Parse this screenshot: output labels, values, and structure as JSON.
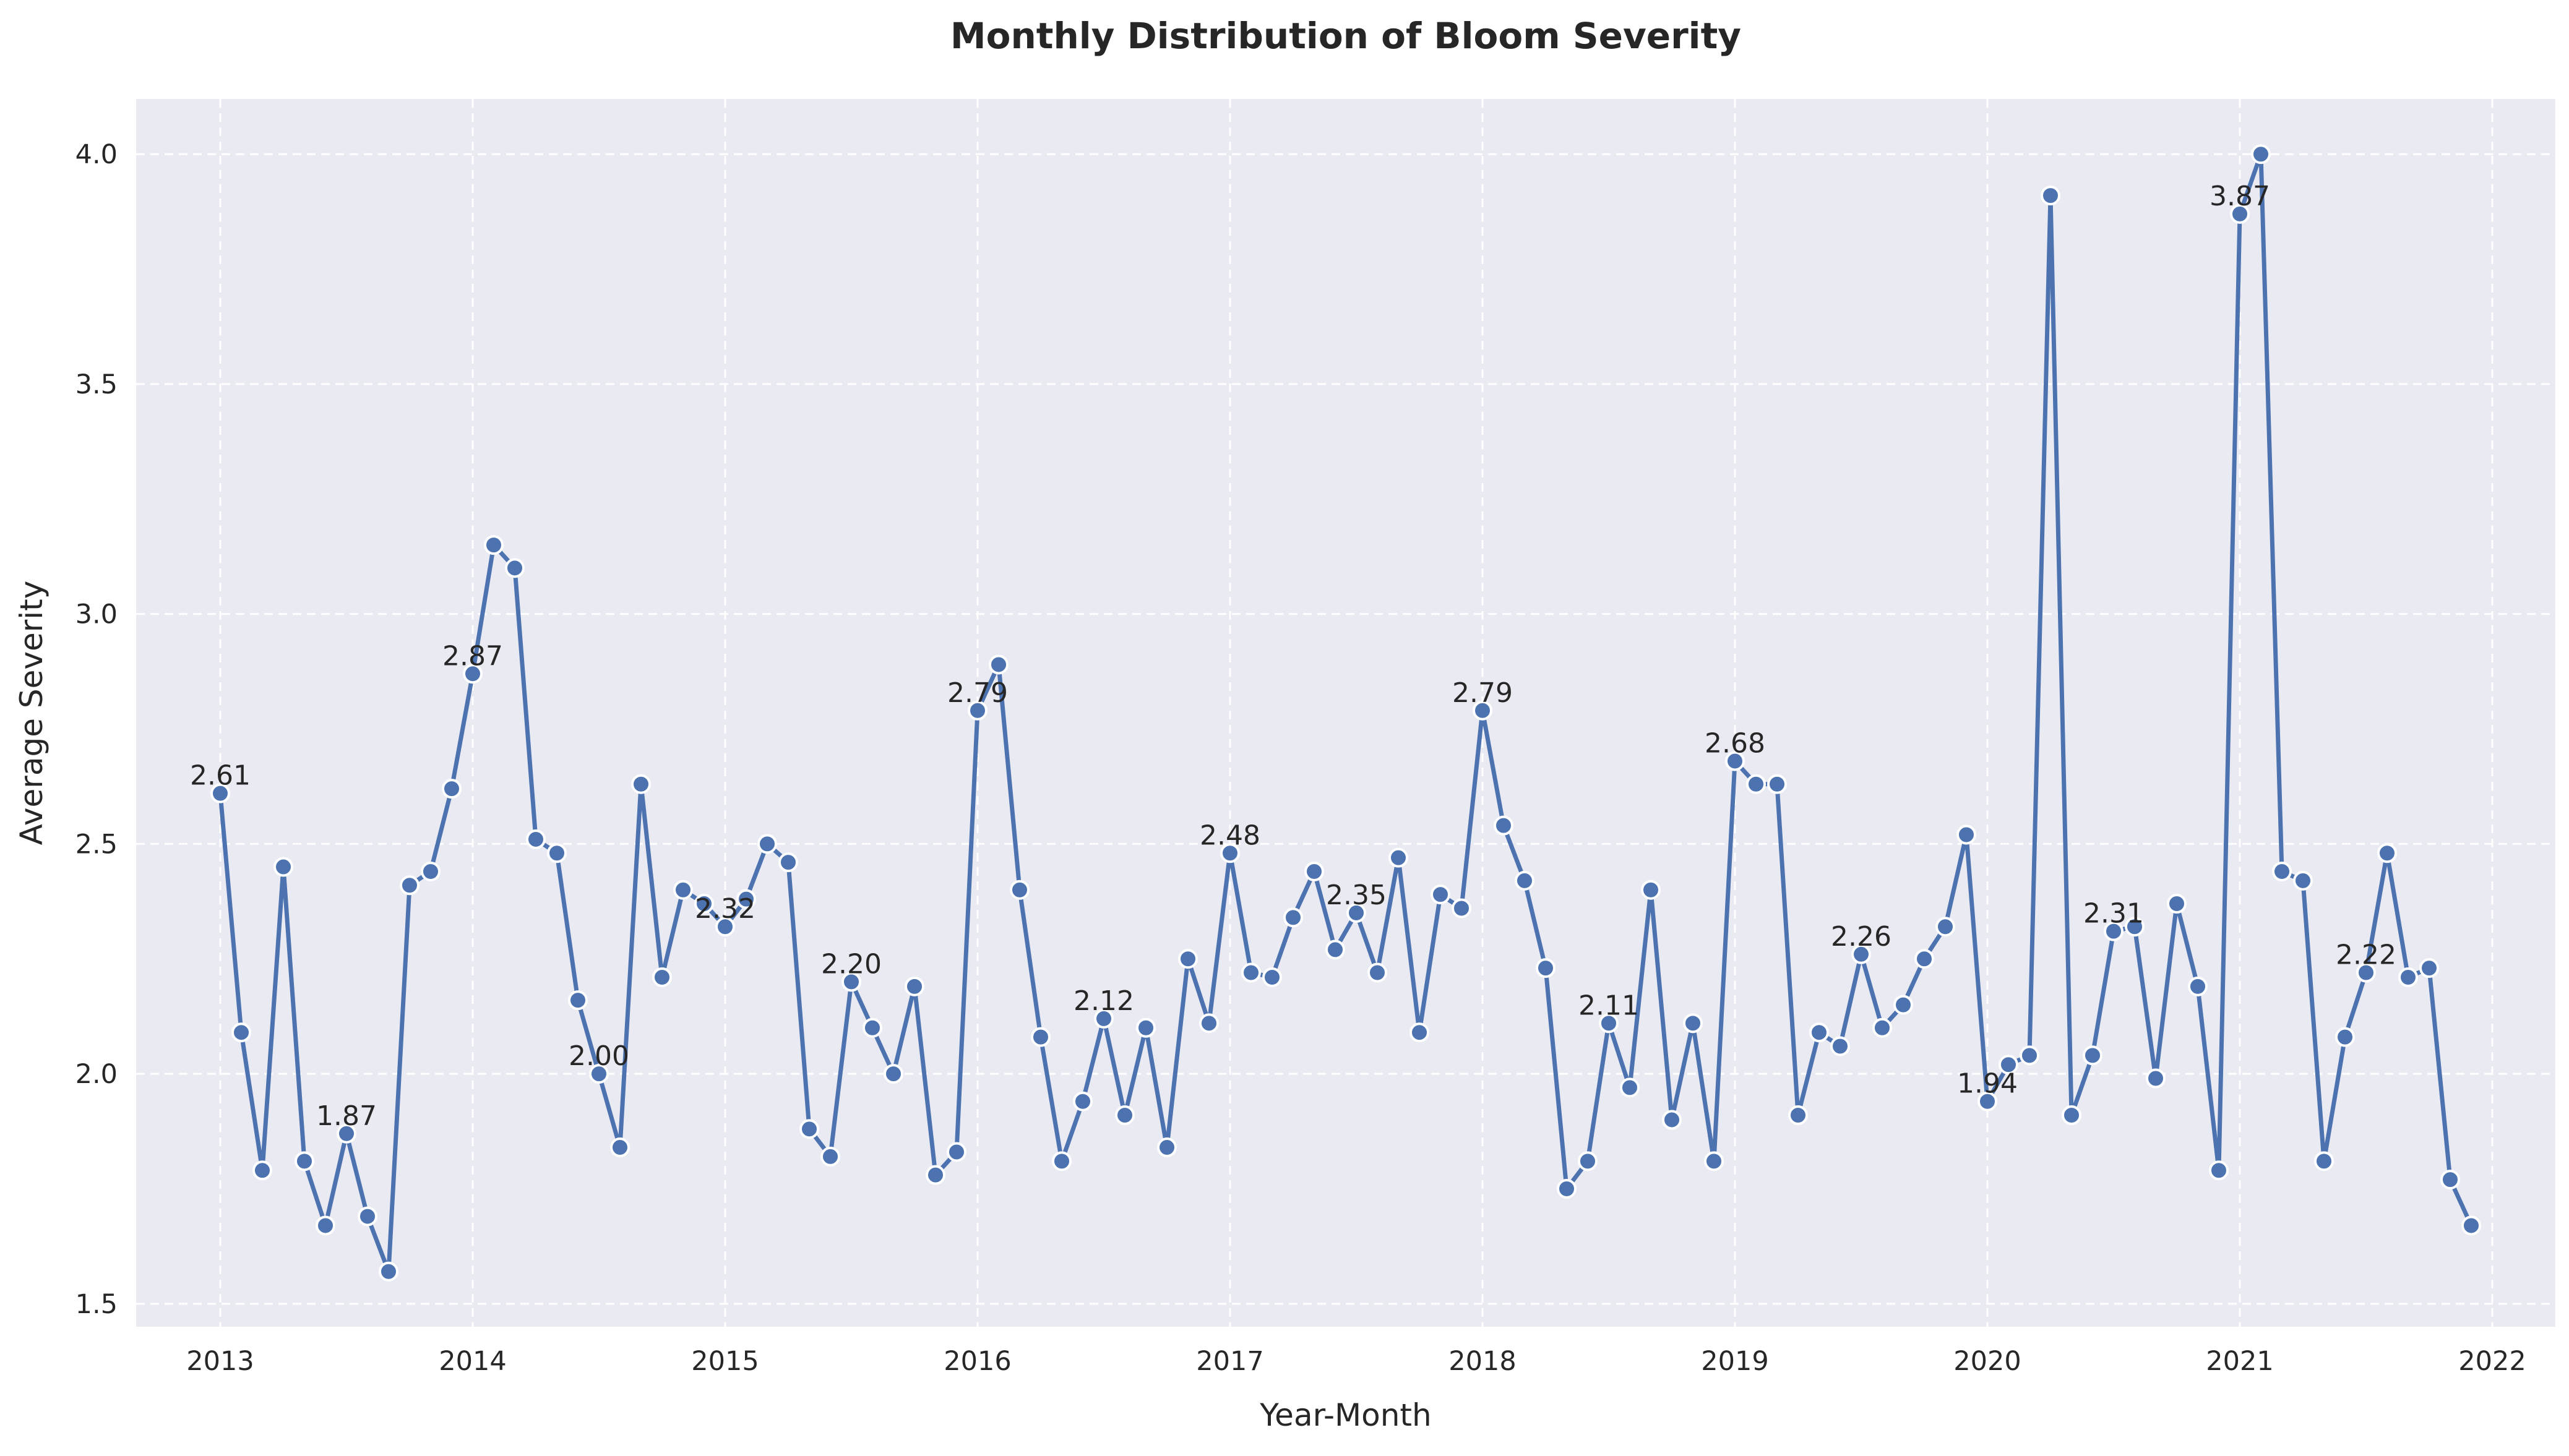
{
  "chart_data": {
    "type": "line",
    "title": "Monthly Distribution of Bloom Severity",
    "xlabel": "Year-Month",
    "ylabel": "Average Severity",
    "x_start": "2013-01",
    "x_ticks": [
      "2013",
      "2014",
      "2015",
      "2016",
      "2017",
      "2018",
      "2019",
      "2020",
      "2021",
      "2022"
    ],
    "xlim": [
      "2012-09",
      "2022-04"
    ],
    "y_ticks": [
      "1.5",
      "2.0",
      "2.5",
      "3.0",
      "3.5",
      "4.0"
    ],
    "ylim": [
      1.45,
      4.12
    ],
    "grid": true,
    "legend": "none",
    "line_color": "#4c72b0",
    "marker_edge_color": "#ffffff",
    "background_color": "#eaeaf2",
    "grid_color": "#ffffff",
    "series": [
      {
        "values": [
          2.61,
          2.09,
          1.79,
          2.45,
          1.81,
          1.67,
          1.87,
          1.69,
          1.57,
          2.41,
          2.44,
          2.62,
          2.87,
          3.15,
          3.1,
          2.51,
          2.48,
          2.16,
          2.0,
          1.84,
          2.63,
          2.21,
          2.4,
          2.37,
          2.32,
          2.38,
          2.5,
          2.46,
          1.88,
          1.82,
          2.2,
          2.1,
          2.0,
          2.19,
          1.78,
          1.83,
          2.79,
          2.89,
          2.4,
          2.08,
          1.81,
          1.94,
          2.12,
          1.91,
          2.1,
          1.84,
          2.25,
          2.11,
          2.48,
          2.22,
          2.21,
          2.34,
          2.44,
          2.27,
          2.35,
          2.22,
          2.47,
          2.09,
          2.39,
          2.36,
          2.79,
          2.54,
          2.42,
          2.23,
          1.75,
          1.81,
          2.11,
          1.97,
          2.4,
          1.9,
          2.11,
          1.81,
          2.68,
          2.63,
          2.63,
          1.91,
          2.09,
          2.06,
          2.26,
          2.1,
          2.15,
          2.25,
          2.32,
          2.52,
          1.94,
          2.02,
          2.04,
          3.91,
          1.91,
          2.04,
          2.31,
          2.32,
          1.99,
          2.37,
          2.19,
          1.79,
          3.87,
          4.0,
          2.44,
          2.42,
          1.81,
          2.08,
          2.22,
          2.48,
          2.21,
          2.23,
          1.77,
          1.67
        ]
      }
    ],
    "annotations": [
      {
        "x": "2013-01",
        "text": "2.61"
      },
      {
        "x": "2013-07",
        "text": "1.87"
      },
      {
        "x": "2014-01",
        "text": "2.87"
      },
      {
        "x": "2014-07",
        "text": "2.00"
      },
      {
        "x": "2015-01",
        "text": "2.32"
      },
      {
        "x": "2015-07",
        "text": "2.20"
      },
      {
        "x": "2016-01",
        "text": "2.79"
      },
      {
        "x": "2016-07",
        "text": "2.12"
      },
      {
        "x": "2017-01",
        "text": "2.48"
      },
      {
        "x": "2017-07",
        "text": "2.35"
      },
      {
        "x": "2018-01",
        "text": "2.79"
      },
      {
        "x": "2018-07",
        "text": "2.11"
      },
      {
        "x": "2019-01",
        "text": "2.68"
      },
      {
        "x": "2019-07",
        "text": "2.26"
      },
      {
        "x": "2020-01",
        "text": "1.94"
      },
      {
        "x": "2020-07",
        "text": "2.31"
      },
      {
        "x": "2021-01",
        "text": "3.87"
      },
      {
        "x": "2021-07",
        "text": "2.22"
      }
    ]
  }
}
